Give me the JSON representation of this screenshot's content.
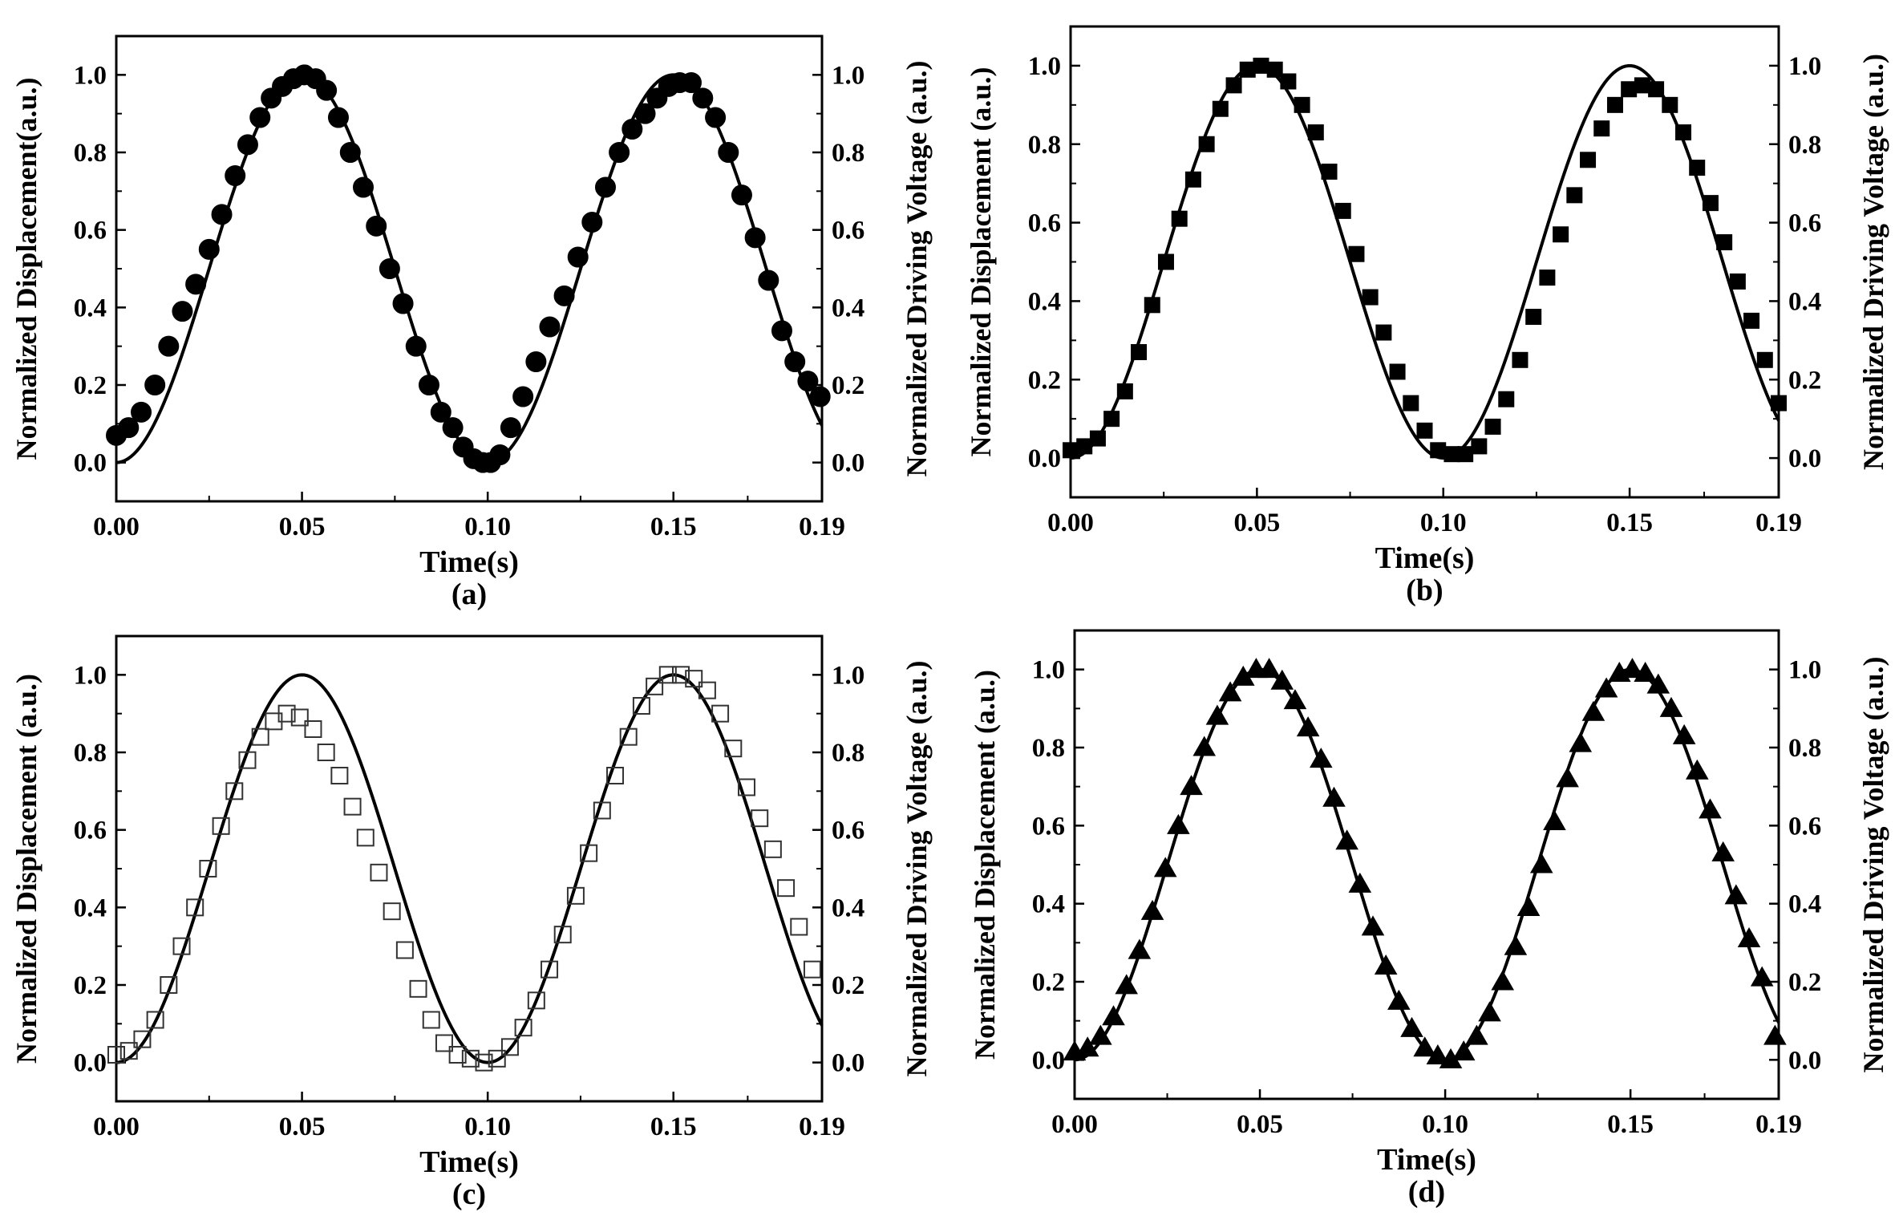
{
  "figure": {
    "panels": [
      {
        "id": "a",
        "caption": "(a)",
        "chart_data": {
          "type": "line",
          "xlabel": "Time(s)",
          "ylabel": "Normalized Displacement(a.u.)",
          "y2label": "Normalized Driving Voltage (a.u.)",
          "xlim": [
            0,
            0.19
          ],
          "ylim": [
            -0.1,
            1.1
          ],
          "xticks": [
            "0.00",
            "0.05",
            "0.10",
            "0.15",
            "0.19"
          ],
          "yticks": [
            "0.0",
            "0.2",
            "0.4",
            "0.6",
            "0.8",
            "1.0"
          ],
          "y2ticks": [
            "0.0",
            "0.2",
            "0.4",
            "0.6",
            "0.8",
            "1.0"
          ],
          "line": {
            "name": "Normalized Driving Voltage",
            "function": "0.5-0.5*cos(2*pi*10*t)",
            "color": "#000000"
          },
          "markers": {
            "name": "Normalized Displacement",
            "shape": "circle",
            "filled": true,
            "x": [
              0.0,
              0.0033,
              0.0067,
              0.0104,
              0.0141,
              0.0178,
              0.0214,
              0.025,
              0.0284,
              0.032,
              0.0354,
              0.0387,
              0.0417,
              0.0447,
              0.0477,
              0.0506,
              0.0537,
              0.0566,
              0.0598,
              0.063,
              0.0665,
              0.07,
              0.0736,
              0.0772,
              0.0807,
              0.0842,
              0.0874,
              0.0906,
              0.0934,
              0.0962,
              0.0987,
              0.1008,
              0.1033,
              0.1062,
              0.1095,
              0.113,
              0.1167,
              0.1206,
              0.1243,
              0.1281,
              0.1317,
              0.1354,
              0.1389,
              0.1424,
              0.1456,
              0.1487,
              0.1517,
              0.1548,
              0.1579,
              0.1613,
              0.1648,
              0.1684,
              0.172,
              0.1756,
              0.1792,
              0.1827,
              0.1862,
              0.1895
            ],
            "y": [
              0.07,
              0.09,
              0.13,
              0.2,
              0.3,
              0.39,
              0.46,
              0.55,
              0.64,
              0.74,
              0.82,
              0.89,
              0.94,
              0.97,
              0.99,
              1.0,
              0.99,
              0.96,
              0.89,
              0.8,
              0.71,
              0.61,
              0.5,
              0.41,
              0.3,
              0.2,
              0.13,
              0.09,
              0.04,
              0.01,
              0.0,
              0.0,
              0.02,
              0.09,
              0.17,
              0.26,
              0.35,
              0.43,
              0.53,
              0.62,
              0.71,
              0.8,
              0.86,
              0.9,
              0.94,
              0.97,
              0.98,
              0.98,
              0.94,
              0.89,
              0.8,
              0.69,
              0.58,
              0.47,
              0.34,
              0.26,
              0.21,
              0.17
            ]
          }
        }
      },
      {
        "id": "b",
        "caption": "(b)",
        "chart_data": {
          "type": "line",
          "xlabel": "Time(s)",
          "ylabel": "Normalized Displacement (a.u.)",
          "y2label": "Normalized Driving Voltage (a.u.)",
          "xlim": [
            0,
            0.19
          ],
          "ylim": [
            -0.1,
            1.1
          ],
          "xticks": [
            "0.00",
            "0.05",
            "0.10",
            "0.15",
            "0.19"
          ],
          "yticks": [
            "0.0",
            "0.2",
            "0.4",
            "0.6",
            "0.8",
            "1.0"
          ],
          "y2ticks": [
            "0.0",
            "0.2",
            "0.4",
            "0.6",
            "0.8",
            "1.0"
          ],
          "line": {
            "name": "Normalized Driving Voltage",
            "function": "0.5-0.5*cos(2*pi*10*t)",
            "color": "#000000"
          },
          "markers": {
            "name": "Normalized Displacement",
            "shape": "square",
            "filled": true,
            "x": [
              0.0,
              0.0037,
              0.0073,
              0.011,
              0.0146,
              0.0183,
              0.0219,
              0.0256,
              0.0292,
              0.0329,
              0.0365,
              0.0402,
              0.0438,
              0.0475,
              0.0511,
              0.0548,
              0.0584,
              0.0621,
              0.0658,
              0.0694,
              0.0731,
              0.0767,
              0.0804,
              0.084,
              0.0877,
              0.0913,
              0.095,
              0.0986,
              0.1023,
              0.1059,
              0.1096,
              0.1133,
              0.1169,
              0.1206,
              0.1242,
              0.1279,
              0.1315,
              0.1352,
              0.1388,
              0.1425,
              0.1461,
              0.1498,
              0.1534,
              0.1571,
              0.1608,
              0.1644,
              0.1681,
              0.1717,
              0.1754,
              0.179,
              0.1827,
              0.1863,
              0.19
            ],
            "y": [
              0.02,
              0.03,
              0.05,
              0.1,
              0.17,
              0.27,
              0.39,
              0.5,
              0.61,
              0.71,
              0.8,
              0.89,
              0.95,
              0.99,
              1.0,
              0.99,
              0.96,
              0.9,
              0.83,
              0.73,
              0.63,
              0.52,
              0.41,
              0.32,
              0.22,
              0.14,
              0.07,
              0.02,
              0.01,
              0.01,
              0.03,
              0.08,
              0.15,
              0.25,
              0.36,
              0.46,
              0.57,
              0.67,
              0.76,
              0.84,
              0.9,
              0.94,
              0.95,
              0.94,
              0.9,
              0.83,
              0.74,
              0.65,
              0.55,
              0.45,
              0.35,
              0.25,
              0.14
            ]
          }
        }
      },
      {
        "id": "c",
        "caption": "(c)",
        "chart_data": {
          "type": "line",
          "xlabel": "Time(s)",
          "ylabel": "Normalized Displacement (a.u.)",
          "y2label": "Normalized Driving Voltage (a.u.)",
          "xlim": [
            0,
            0.19
          ],
          "ylim": [
            -0.1,
            1.1
          ],
          "xticks": [
            "0.00",
            "0.05",
            "0.10",
            "0.15",
            "0.19"
          ],
          "yticks": [
            "0.0",
            "0.2",
            "0.4",
            "0.6",
            "0.8",
            "1.0"
          ],
          "y2ticks": [
            "0.0",
            "0.2",
            "0.4",
            "0.6",
            "0.8",
            "1.0"
          ],
          "line": {
            "name": "Normalized Driving Voltage",
            "function": "0.5-0.5*cos(2*pi*10*t)",
            "color": "#000000"
          },
          "markers": {
            "name": "Normalized Displacement",
            "shape": "square",
            "filled": false,
            "x": [
              0.0,
              0.0034,
              0.007,
              0.0105,
              0.0141,
              0.0176,
              0.0212,
              0.0247,
              0.0282,
              0.0318,
              0.0353,
              0.0388,
              0.0424,
              0.0459,
              0.0494,
              0.053,
              0.0565,
              0.0601,
              0.0636,
              0.0671,
              0.0707,
              0.0742,
              0.0777,
              0.0813,
              0.0848,
              0.0883,
              0.0919,
              0.0954,
              0.099,
              0.1025,
              0.106,
              0.1096,
              0.1131,
              0.1166,
              0.1202,
              0.1237,
              0.1272,
              0.1308,
              0.1343,
              0.1379,
              0.1414,
              0.1449,
              0.1485,
              0.152,
              0.1555,
              0.1591,
              0.1626,
              0.1661,
              0.1697,
              0.1732,
              0.1768,
              0.1803,
              0.1838,
              0.1874
            ],
            "y": [
              0.02,
              0.03,
              0.06,
              0.11,
              0.2,
              0.3,
              0.4,
              0.5,
              0.61,
              0.7,
              0.78,
              0.84,
              0.88,
              0.9,
              0.89,
              0.86,
              0.8,
              0.74,
              0.66,
              0.58,
              0.49,
              0.39,
              0.29,
              0.19,
              0.11,
              0.05,
              0.02,
              0.01,
              0.0,
              0.01,
              0.04,
              0.09,
              0.16,
              0.24,
              0.33,
              0.43,
              0.54,
              0.65,
              0.74,
              0.84,
              0.92,
              0.97,
              1.0,
              1.0,
              0.99,
              0.96,
              0.9,
              0.81,
              0.71,
              0.63,
              0.55,
              0.45,
              0.35,
              0.24
            ]
          }
        }
      },
      {
        "id": "d",
        "caption": "(d)",
        "chart_data": {
          "type": "line",
          "xlabel": "Time(s)",
          "ylabel": "Normalized Displacement (a.u.)",
          "y2label": "Normalized Driving Voltage (a.u.)",
          "xlim": [
            0,
            0.19
          ],
          "ylim": [
            -0.1,
            1.1
          ],
          "xticks": [
            "0.00",
            "0.05",
            "0.10",
            "0.15",
            "0.19"
          ],
          "yticks": [
            "0.0",
            "0.2",
            "0.4",
            "0.6",
            "0.8",
            "1.0"
          ],
          "y2ticks": [
            "0.0",
            "0.2",
            "0.4",
            "0.6",
            "0.8",
            "1.0"
          ],
          "line": {
            "name": "Normalized Driving Voltage",
            "function": "0.5-0.5*cos(2*pi*10*t)",
            "color": "#000000"
          },
          "markers": {
            "name": "Normalized Displacement",
            "shape": "triangle",
            "filled": true,
            "x": [
              0.0,
              0.0035,
              0.007,
              0.0105,
              0.014,
              0.0175,
              0.021,
              0.0245,
              0.028,
              0.0315,
              0.035,
              0.0385,
              0.042,
              0.0455,
              0.049,
              0.0525,
              0.056,
              0.0595,
              0.063,
              0.0665,
              0.07,
              0.0735,
              0.077,
              0.0805,
              0.084,
              0.0875,
              0.091,
              0.0945,
              0.098,
              0.1015,
              0.105,
              0.1085,
              0.112,
              0.1155,
              0.119,
              0.1225,
              0.126,
              0.1295,
              0.133,
              0.1365,
              0.14,
              0.1435,
              0.147,
              0.1505,
              0.154,
              0.1575,
              0.161,
              0.1645,
              0.168,
              0.1715,
              0.175,
              0.1785,
              0.182,
              0.1855,
              0.189
            ],
            "y": [
              0.02,
              0.03,
              0.06,
              0.11,
              0.19,
              0.28,
              0.38,
              0.49,
              0.6,
              0.7,
              0.8,
              0.88,
              0.94,
              0.98,
              1.0,
              1.0,
              0.97,
              0.92,
              0.85,
              0.77,
              0.67,
              0.56,
              0.45,
              0.34,
              0.24,
              0.15,
              0.08,
              0.03,
              0.01,
              0.0,
              0.02,
              0.06,
              0.12,
              0.2,
              0.29,
              0.39,
              0.5,
              0.61,
              0.72,
              0.81,
              0.89,
              0.95,
              0.99,
              1.0,
              0.99,
              0.96,
              0.9,
              0.83,
              0.74,
              0.64,
              0.53,
              0.42,
              0.31,
              0.21,
              0.06
            ]
          }
        }
      }
    ]
  }
}
